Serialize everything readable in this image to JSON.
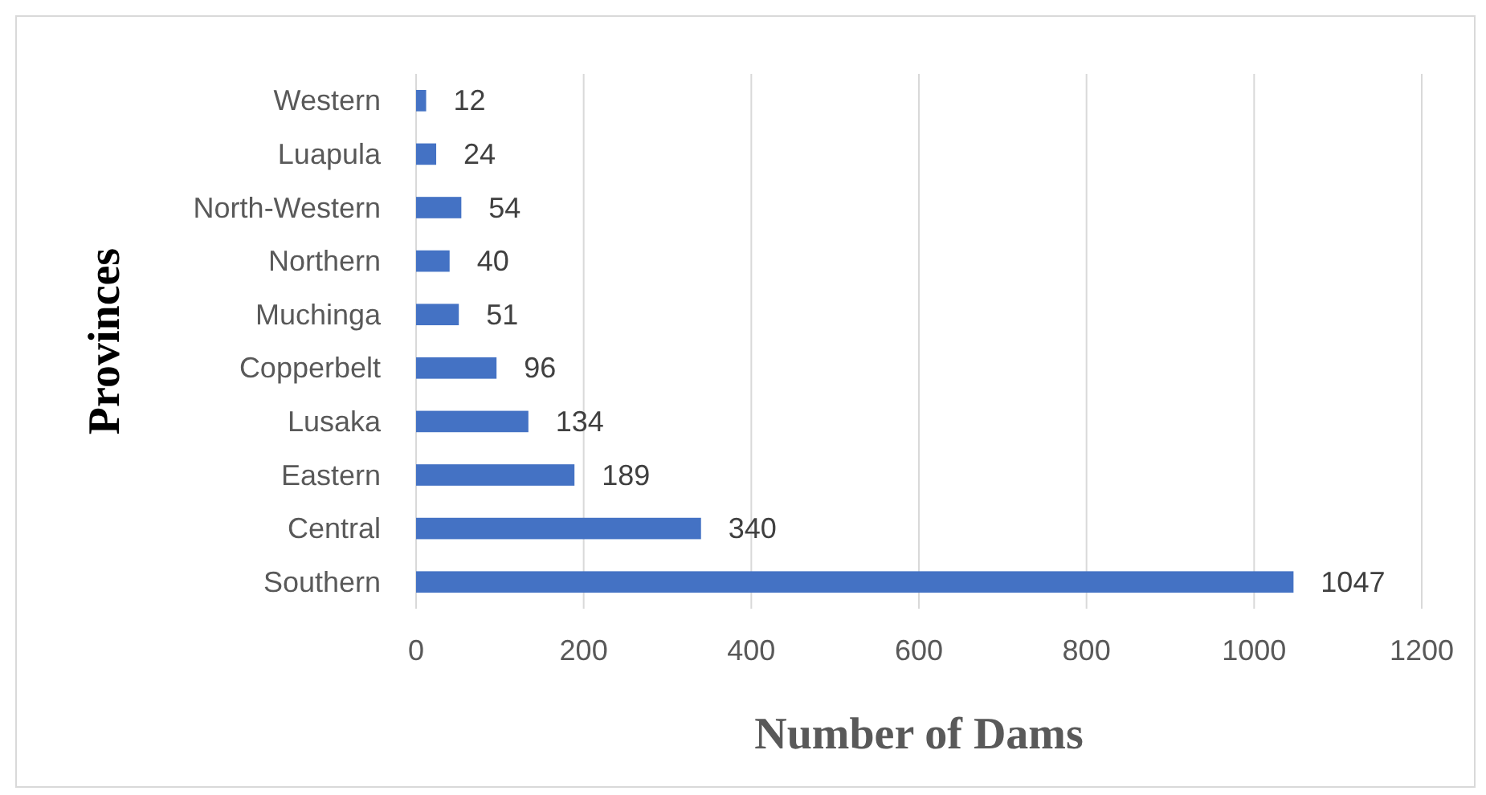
{
  "chart_data": {
    "type": "bar",
    "orientation": "horizontal",
    "xlabel": "Number of Dams",
    "ylabel": "Provinces",
    "categories": [
      "Western",
      "Luapula",
      "North-Western",
      "Northern",
      "Muchinga",
      "Copperbelt",
      "Lusaka",
      "Eastern",
      "Central",
      "Southern"
    ],
    "values": [
      12,
      24,
      54,
      40,
      51,
      96,
      134,
      189,
      340,
      1047
    ],
    "color": "#4472c4",
    "xlim": [
      0,
      1200
    ],
    "xticks": [
      0,
      200,
      400,
      600,
      800,
      1000,
      1200
    ],
    "grid": "x",
    "data_labels": true
  }
}
